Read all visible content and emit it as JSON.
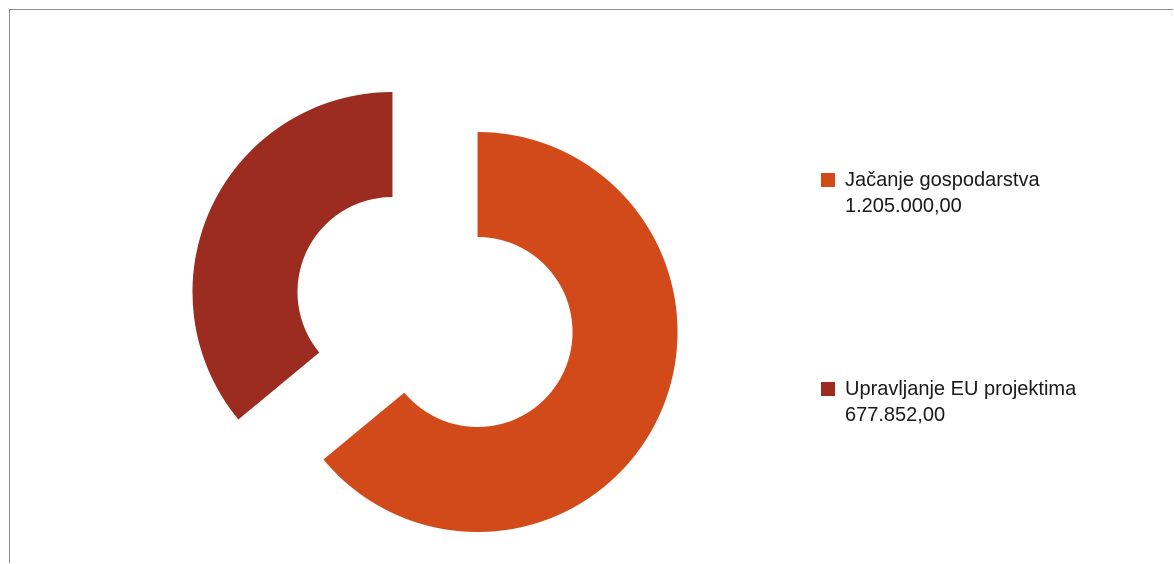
{
  "chart_data": {
    "type": "pie",
    "variant": "doughnut",
    "title": "",
    "categories": [
      "Jačanje gospodarstva",
      "Upravljanje EU projektima"
    ],
    "values": [
      1205000.0,
      677852.0
    ],
    "value_labels": [
      "1.205.000,00",
      "677.852,00"
    ],
    "colors": [
      "#D24A19",
      "#9B2C1F"
    ],
    "exploded": true,
    "legend_position": "right",
    "grid": false
  }
}
